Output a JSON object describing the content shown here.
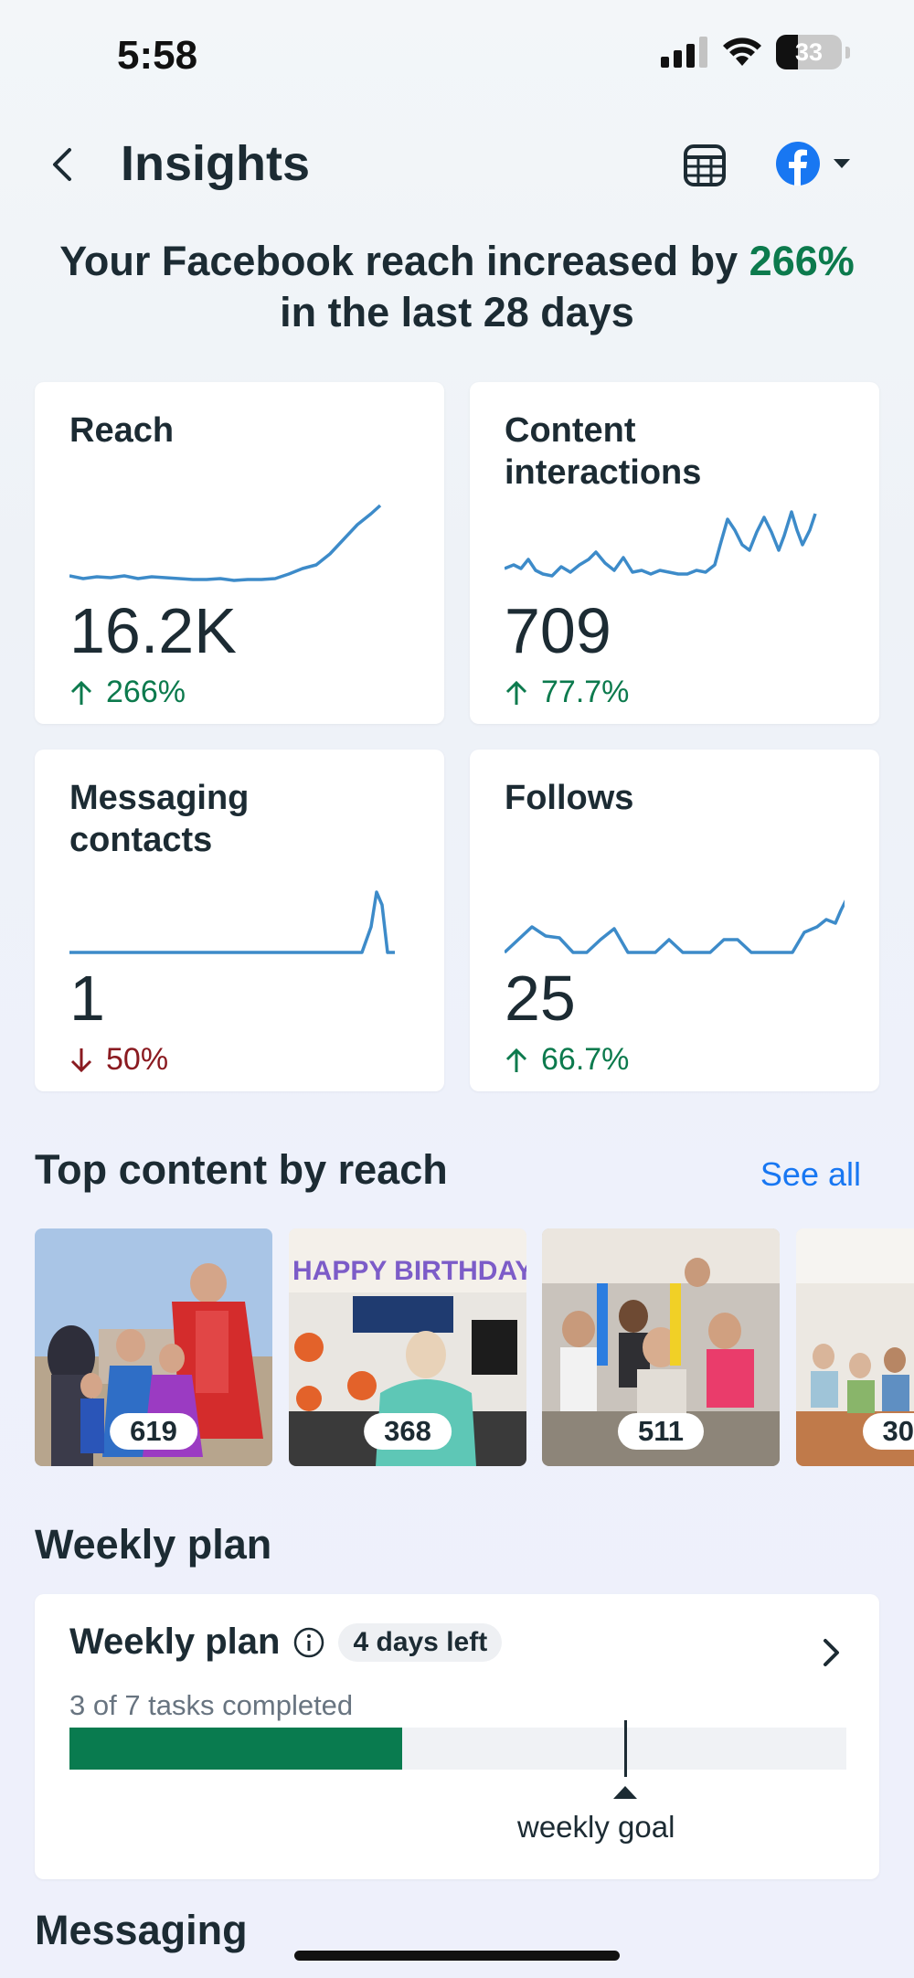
{
  "status_bar": {
    "time": "5:58",
    "battery": "33"
  },
  "header": {
    "title": "Insights"
  },
  "headline": {
    "prefix": "Your Facebook reach increased by ",
    "highlight": "266%",
    "suffix": "in the last 28 days"
  },
  "metrics": [
    {
      "title": "Reach",
      "value": "16.2K",
      "change": "266%",
      "direction": "up"
    },
    {
      "title": "Content interactions",
      "value": "709",
      "change": "77.7%",
      "direction": "up"
    },
    {
      "title": "Messaging contacts",
      "value": "1",
      "change": "50%",
      "direction": "down"
    },
    {
      "title": "Follows",
      "value": "25",
      "change": "66.7%",
      "direction": "up"
    }
  ],
  "top_content": {
    "title": "Top content by reach",
    "see_all": "See all",
    "items": [
      {
        "reach": "619"
      },
      {
        "reach": "368"
      },
      {
        "reach": "511"
      },
      {
        "reach": "30"
      }
    ]
  },
  "weekly_plan": {
    "section_title": "Weekly plan",
    "card_title": "Weekly plan",
    "badge": "4 days left",
    "subtitle": "3 of 7 tasks completed",
    "progress_completed": 3,
    "progress_total": 7,
    "goal_label": "weekly goal"
  },
  "messaging": {
    "section_title": "Messaging"
  },
  "colors": {
    "accent_green": "#0c7a4d",
    "decline_red": "#8a1a20",
    "link_blue": "#1877f2",
    "sparkline": "#3d8bc9"
  }
}
